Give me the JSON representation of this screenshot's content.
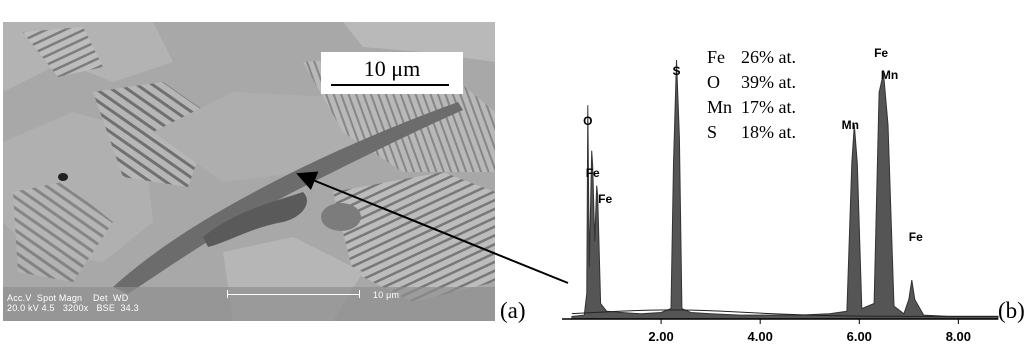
{
  "micrograph": {
    "scale_bar_label": "10 μm",
    "info_headers": "Acc.V  Spot Magn    Det  WD",
    "info_values": "20.0 kV 4.5   3200x   BSE  34.3",
    "bottom_scale_label": "10 μm",
    "panel_label": "(a)"
  },
  "spectrum": {
    "panel_label": "(b)",
    "peaks": [
      {
        "label": "O",
        "energy": 0.52
      },
      {
        "label": "Fe",
        "energy": 0.62
      },
      {
        "label": "Fe",
        "energy": 0.71
      },
      {
        "label": "S",
        "energy": 2.31
      },
      {
        "label": "Mn",
        "energy": 5.9
      },
      {
        "label": "Mn",
        "energy": 6.49
      },
      {
        "label": "Fe",
        "energy": 6.4
      },
      {
        "label": "Fe",
        "energy": 7.06
      }
    ],
    "composition": [
      {
        "element": "Fe",
        "value": "26% at."
      },
      {
        "element": "O",
        "value": "39% at."
      },
      {
        "element": "Mn",
        "value": "17% at."
      },
      {
        "element": "S",
        "value": "18% at."
      }
    ]
  },
  "chart_data": {
    "type": "line",
    "x_ticks": [
      "2.00",
      "4.00",
      "6.00",
      "8.00"
    ],
    "xlim": [
      0,
      8.8
    ],
    "x": [
      0.2,
      0.45,
      0.5,
      0.52,
      0.55,
      0.6,
      0.62,
      0.66,
      0.7,
      0.72,
      0.78,
      0.9,
      1.2,
      1.6,
      2.0,
      2.2,
      2.25,
      2.31,
      2.37,
      2.42,
      2.6,
      3.0,
      3.6,
      4.2,
      4.8,
      5.4,
      5.75,
      5.85,
      5.9,
      5.96,
      6.05,
      6.3,
      6.4,
      6.49,
      6.58,
      6.7,
      6.9,
      7.0,
      7.06,
      7.12,
      7.3,
      7.8,
      8.3,
      8.8
    ],
    "y": [
      2,
      3,
      20,
      165,
      40,
      130,
      118,
      60,
      103,
      95,
      12,
      6,
      5,
      4,
      5,
      8,
      120,
      200,
      140,
      8,
      5,
      4,
      3,
      3,
      3,
      4,
      6,
      120,
      150,
      120,
      8,
      12,
      175,
      190,
      150,
      10,
      4,
      15,
      30,
      15,
      3,
      2,
      2,
      2
    ]
  }
}
